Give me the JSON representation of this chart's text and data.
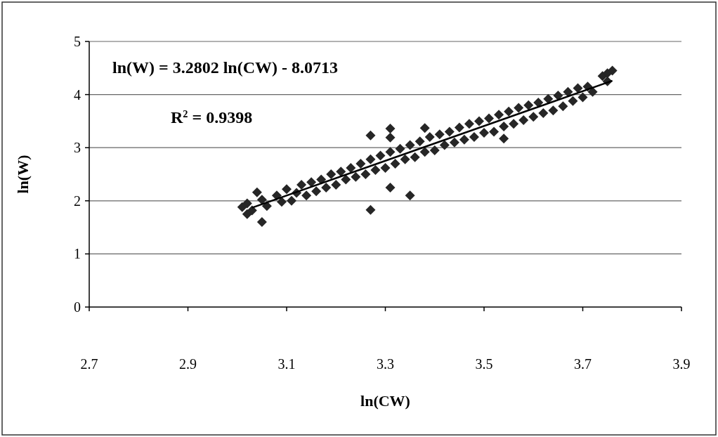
{
  "chart_data": {
    "type": "scatter",
    "xlabel": "ln(CW)",
    "ylabel": "ln(W)",
    "annotations": [
      "ln(W) = 3.2802 ln(CW) - 8.0713",
      "R$^{2}$ = 0.9398"
    ],
    "xlim": [
      2.7,
      3.9
    ],
    "xticks": [
      2.7,
      2.9,
      3.1,
      3.3,
      3.5,
      3.7,
      3.9
    ],
    "ylim": [
      0,
      5
    ],
    "yticks": [
      0,
      1,
      2,
      3,
      4,
      5
    ],
    "grid": "y",
    "series": [
      {
        "marker": "diamond",
        "color": "#262626",
        "x": [
          3.02,
          3.03,
          3.05,
          3.06,
          3.08,
          3.09,
          3.1,
          3.11,
          3.12,
          3.13,
          3.14,
          3.15,
          3.16,
          3.17,
          3.18,
          3.19,
          3.2,
          3.21,
          3.22,
          3.23,
          3.24,
          3.25,
          3.26,
          3.27,
          3.28,
          3.29,
          3.3,
          3.31,
          3.32,
          3.33,
          3.34,
          3.35,
          3.36,
          3.37,
          3.38,
          3.39,
          3.4,
          3.41,
          3.42,
          3.43,
          3.44,
          3.45,
          3.46,
          3.47,
          3.48,
          3.49,
          3.5,
          3.51,
          3.52,
          3.53,
          3.54,
          3.55,
          3.56,
          3.57,
          3.58,
          3.59,
          3.6,
          3.61,
          3.62,
          3.63,
          3.64,
          3.65,
          3.66,
          3.67,
          3.68,
          3.69,
          3.7,
          3.71,
          3.72,
          3.74,
          3.75,
          3.76,
          3.75,
          3.01,
          3.02,
          3.05,
          3.04,
          3.27,
          3.31,
          3.31,
          3.38,
          3.27,
          3.35,
          3.31,
          3.54
        ],
        "values": [
          1.95,
          1.82,
          2.02,
          1.9,
          2.1,
          1.98,
          2.22,
          2.0,
          2.15,
          2.3,
          2.1,
          2.35,
          2.18,
          2.4,
          2.25,
          2.5,
          2.3,
          2.55,
          2.4,
          2.62,
          2.45,
          2.7,
          2.5,
          2.78,
          2.58,
          2.85,
          2.62,
          2.92,
          2.7,
          2.98,
          2.78,
          3.05,
          2.82,
          3.12,
          2.92,
          3.2,
          2.95,
          3.25,
          3.05,
          3.3,
          3.1,
          3.38,
          3.15,
          3.45,
          3.2,
          3.5,
          3.28,
          3.55,
          3.3,
          3.62,
          3.4,
          3.68,
          3.45,
          3.75,
          3.52,
          3.8,
          3.58,
          3.85,
          3.65,
          3.92,
          3.7,
          3.98,
          3.78,
          4.05,
          3.88,
          4.12,
          3.95,
          4.15,
          4.05,
          4.35,
          4.4,
          4.45,
          4.25,
          1.88,
          1.75,
          1.6,
          2.16,
          3.23,
          3.36,
          3.19,
          3.37,
          1.83,
          2.1,
          2.25,
          3.17
        ]
      },
      {
        "type": "line",
        "color": "#000000",
        "x": [
          3.03,
          3.76
        ],
        "values": [
          1.87,
          4.26
        ]
      }
    ]
  }
}
